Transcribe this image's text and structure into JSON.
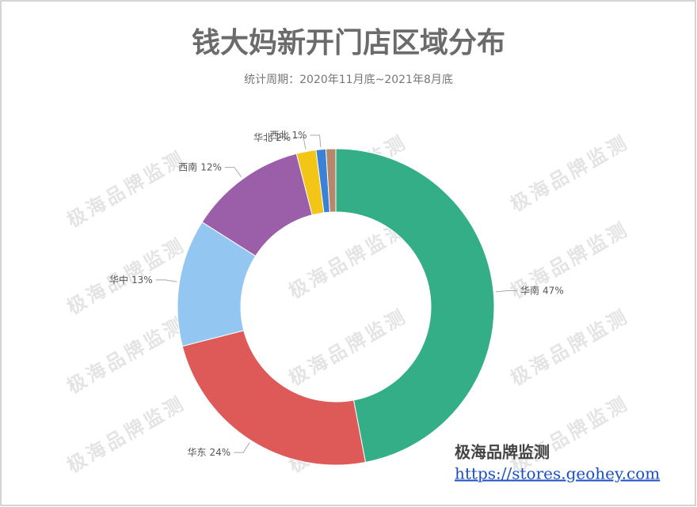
{
  "chart_data": {
    "type": "donut",
    "title": "钱大妈新开门店区域分布",
    "subtitle": "统计周期：2020年11月底~2021年8月底",
    "watermark": "极海品牌监测",
    "source_name": "极海品牌监测",
    "source_url": "https://stores.geohey.com",
    "categories": [
      "华南",
      "华东",
      "华中",
      "西南",
      "华北",
      "西北",
      null
    ],
    "values": [
      47,
      24,
      13,
      12,
      2,
      1,
      1
    ],
    "value_labels": [
      "47%",
      "24%",
      "13%",
      "12%",
      "2%",
      "1%",
      null
    ],
    "colors": [
      "#34ae86",
      "#dd5a58",
      "#93c6f0",
      "#9b5ea8",
      "#f3c517",
      "#3b82d6",
      "#b5876b"
    ]
  }
}
